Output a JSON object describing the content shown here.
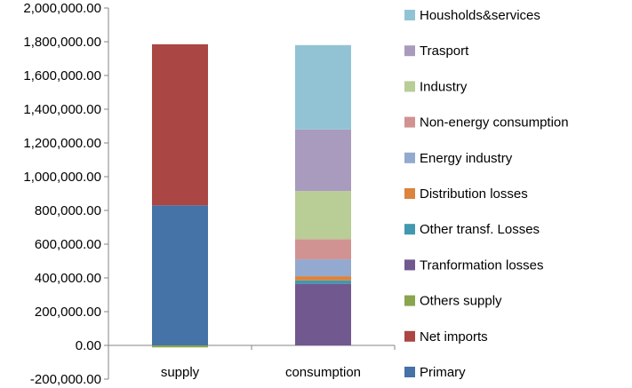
{
  "chart_data": {
    "type": "bar",
    "stacked": true,
    "categories": [
      "supply",
      "consumption"
    ],
    "series": [
      {
        "name": "Primary",
        "color": "#4572a7",
        "values": [
          830000,
          0
        ]
      },
      {
        "name": "Net imports",
        "color": "#aa4643",
        "values": [
          955000,
          0
        ]
      },
      {
        "name": "Others supply",
        "color": "#89a54e",
        "values": [
          -12000,
          0
        ]
      },
      {
        "name": "Tranformation losses",
        "color": "#71588f",
        "values": [
          0,
          365000
        ]
      },
      {
        "name": "Other transf.  Losses",
        "color": "#4198af",
        "values": [
          0,
          20000
        ]
      },
      {
        "name": "Distribution losses",
        "color": "#db843d",
        "values": [
          0,
          25000
        ]
      },
      {
        "name": "Energy industry",
        "color": "#93a9cf",
        "values": [
          0,
          100000
        ]
      },
      {
        "name": "Non-energy consumption",
        "color": "#d19392",
        "values": [
          0,
          120000
        ]
      },
      {
        "name": "Industry",
        "color": "#b9cd96",
        "values": [
          0,
          285000
        ]
      },
      {
        "name": "Trasport",
        "color": "#a99bbd",
        "values": [
          0,
          365000
        ]
      },
      {
        "name": "Housholds&services",
        "color": "#92c3d4",
        "values": [
          0,
          500000
        ]
      }
    ],
    "yticks": [
      "2,000,000.00",
      "1,800,000.00",
      "1,600,000.00",
      "1,400,000.00",
      "1,200,000.00",
      "1,000,000.00",
      "800,000.00",
      "600,000.00",
      "400,000.00",
      "200,000.00",
      "0.00",
      "-200,000.00"
    ],
    "ylim": [
      -200000,
      2000000
    ],
    "title": "",
    "xlabel": "",
    "ylabel": "",
    "grid": false,
    "legend": "right"
  }
}
